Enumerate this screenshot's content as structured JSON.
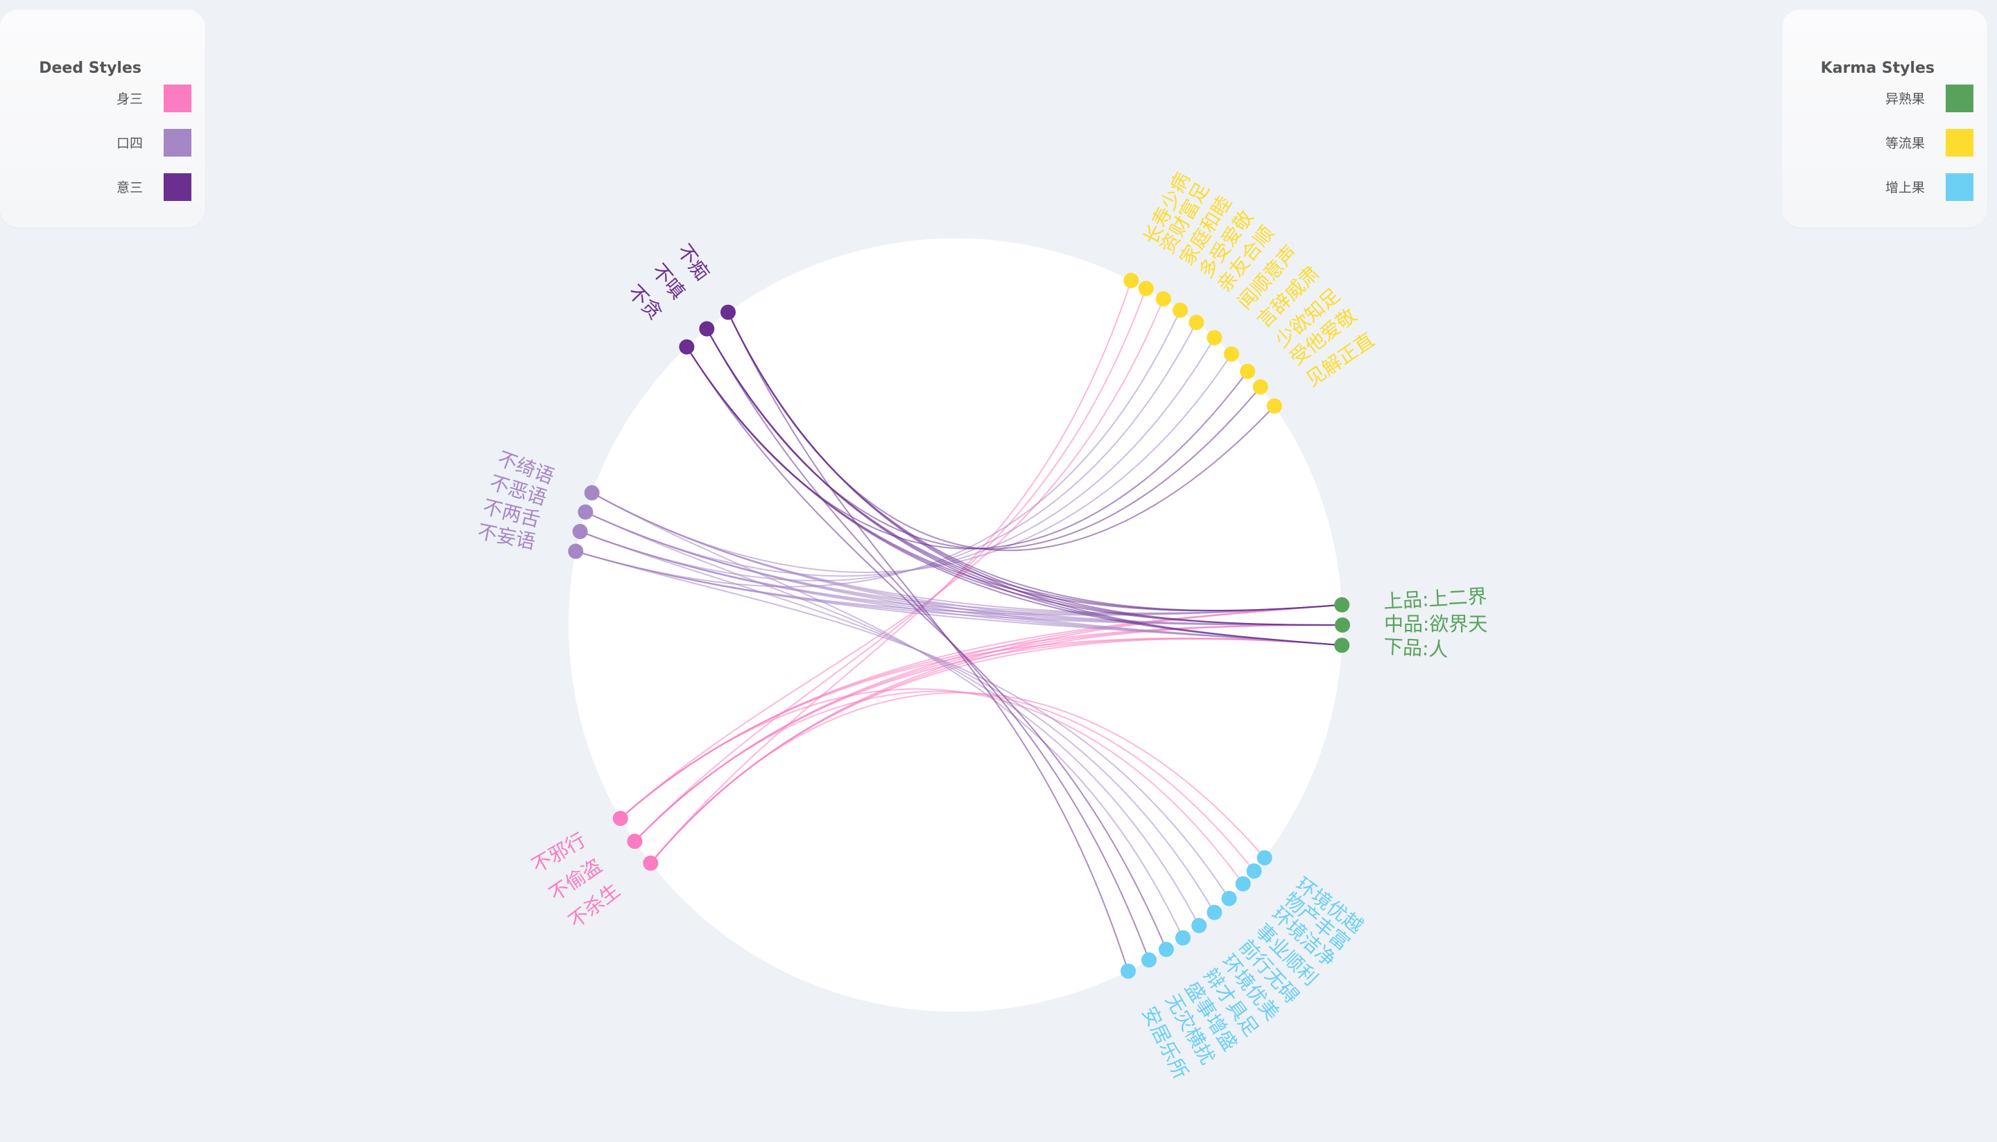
{
  "legend_deed": {
    "title": "Deed Styles",
    "items": [
      {
        "label": "身三",
        "color": "#fb7cc0"
      },
      {
        "label": "口四",
        "color": "#a587c6"
      },
      {
        "label": "意三",
        "color": "#6a2f8f"
      }
    ]
  },
  "legend_karma": {
    "title": "Karma Styles",
    "items": [
      {
        "label": "异熟果",
        "color": "#58a35c"
      },
      {
        "label": "等流果",
        "color": "#fddc2f"
      },
      {
        "label": "增上果",
        "color": "#6ccff4"
      }
    ]
  },
  "chart_data": {
    "type": "chord",
    "deeds": [
      {
        "name": "不痴",
        "group": "意三"
      },
      {
        "name": "不嗔",
        "group": "意三"
      },
      {
        "name": "不贪",
        "group": "意三"
      },
      {
        "name": "不绮语",
        "group": "口四"
      },
      {
        "name": "不恶语",
        "group": "口四"
      },
      {
        "name": "不两舌",
        "group": "口四"
      },
      {
        "name": "不妄语",
        "group": "口四"
      },
      {
        "name": "不邪行",
        "group": "身三"
      },
      {
        "name": "不偷盗",
        "group": "身三"
      },
      {
        "name": "不杀生",
        "group": "身三"
      }
    ],
    "karmas": [
      {
        "name": "长寿少病",
        "group": "等流果"
      },
      {
        "name": "资财富足",
        "group": "等流果"
      },
      {
        "name": "家庭和睦",
        "group": "等流果"
      },
      {
        "name": "多受爱敬",
        "group": "等流果"
      },
      {
        "name": "亲友合顺",
        "group": "等流果"
      },
      {
        "name": "闻顺意声",
        "group": "等流果"
      },
      {
        "name": "言辞威肃",
        "group": "等流果"
      },
      {
        "name": "少欲知足",
        "group": "等流果"
      },
      {
        "name": "受他爱敬",
        "group": "等流果"
      },
      {
        "name": "见解正直",
        "group": "等流果"
      },
      {
        "name": "上品:上二界",
        "group": "异熟果"
      },
      {
        "name": "中品:欲界天",
        "group": "异熟果"
      },
      {
        "name": "下品:人",
        "group": "异熟果"
      },
      {
        "name": "环境优越",
        "group": "增上果"
      },
      {
        "name": "物产丰富",
        "group": "增上果"
      },
      {
        "name": "环境洁净",
        "group": "增上果"
      },
      {
        "name": "事业顺利",
        "group": "增上果"
      },
      {
        "name": "前行无碍",
        "group": "增上果"
      },
      {
        "name": "环境优美",
        "group": "增上果"
      },
      {
        "name": "辩才具足",
        "group": "增上果"
      },
      {
        "name": "盛事增盛",
        "group": "增上果"
      },
      {
        "name": "无灾横扰",
        "group": "增上果"
      },
      {
        "name": "安居乐所",
        "group": "增上果"
      }
    ],
    "links": [
      [
        "不杀生",
        "长寿少病"
      ],
      [
        "不杀生",
        "上品:上二界"
      ],
      [
        "不杀生",
        "中品:欲界天"
      ],
      [
        "不杀生",
        "下品:人"
      ],
      [
        "不杀生",
        "环境优越"
      ],
      [
        "不偷盗",
        "资财富足"
      ],
      [
        "不偷盗",
        "上品:上二界"
      ],
      [
        "不偷盗",
        "中品:欲界天"
      ],
      [
        "不偷盗",
        "下品:人"
      ],
      [
        "不偷盗",
        "物产丰富"
      ],
      [
        "不邪行",
        "家庭和睦"
      ],
      [
        "不邪行",
        "上品:上二界"
      ],
      [
        "不邪行",
        "中品:欲界天"
      ],
      [
        "不邪行",
        "下品:人"
      ],
      [
        "不邪行",
        "环境洁净"
      ],
      [
        "不妄语",
        "多受爱敬"
      ],
      [
        "不妄语",
        "上品:上二界"
      ],
      [
        "不妄语",
        "中品:欲界天"
      ],
      [
        "不妄语",
        "下品:人"
      ],
      [
        "不妄语",
        "事业顺利"
      ],
      [
        "不两舌",
        "亲友合顺"
      ],
      [
        "不两舌",
        "上品:上二界"
      ],
      [
        "不两舌",
        "中品:欲界天"
      ],
      [
        "不两舌",
        "下品:人"
      ],
      [
        "不两舌",
        "前行无碍"
      ],
      [
        "不恶语",
        "闻顺意声"
      ],
      [
        "不恶语",
        "上品:上二界"
      ],
      [
        "不恶语",
        "中品:欲界天"
      ],
      [
        "不恶语",
        "下品:人"
      ],
      [
        "不恶语",
        "环境优美"
      ],
      [
        "不绮语",
        "言辞威肃"
      ],
      [
        "不绮语",
        "上品:上二界"
      ],
      [
        "不绮语",
        "中品:欲界天"
      ],
      [
        "不绮语",
        "下品:人"
      ],
      [
        "不绮语",
        "辩才具足"
      ],
      [
        "不贪",
        "少欲知足"
      ],
      [
        "不贪",
        "上品:上二界"
      ],
      [
        "不贪",
        "中品:欲界天"
      ],
      [
        "不贪",
        "下品:人"
      ],
      [
        "不贪",
        "盛事增盛"
      ],
      [
        "不嗔",
        "受他爱敬"
      ],
      [
        "不嗔",
        "上品:上二界"
      ],
      [
        "不嗔",
        "中品:欲界天"
      ],
      [
        "不嗔",
        "下品:人"
      ],
      [
        "不嗔",
        "无灾横扰"
      ],
      [
        "不痴",
        "见解正直"
      ],
      [
        "不痴",
        "上品:上二界"
      ],
      [
        "不痴",
        "中品:欲界天"
      ],
      [
        "不痴",
        "下品:人"
      ],
      [
        "不痴",
        "安居乐所"
      ]
    ]
  }
}
